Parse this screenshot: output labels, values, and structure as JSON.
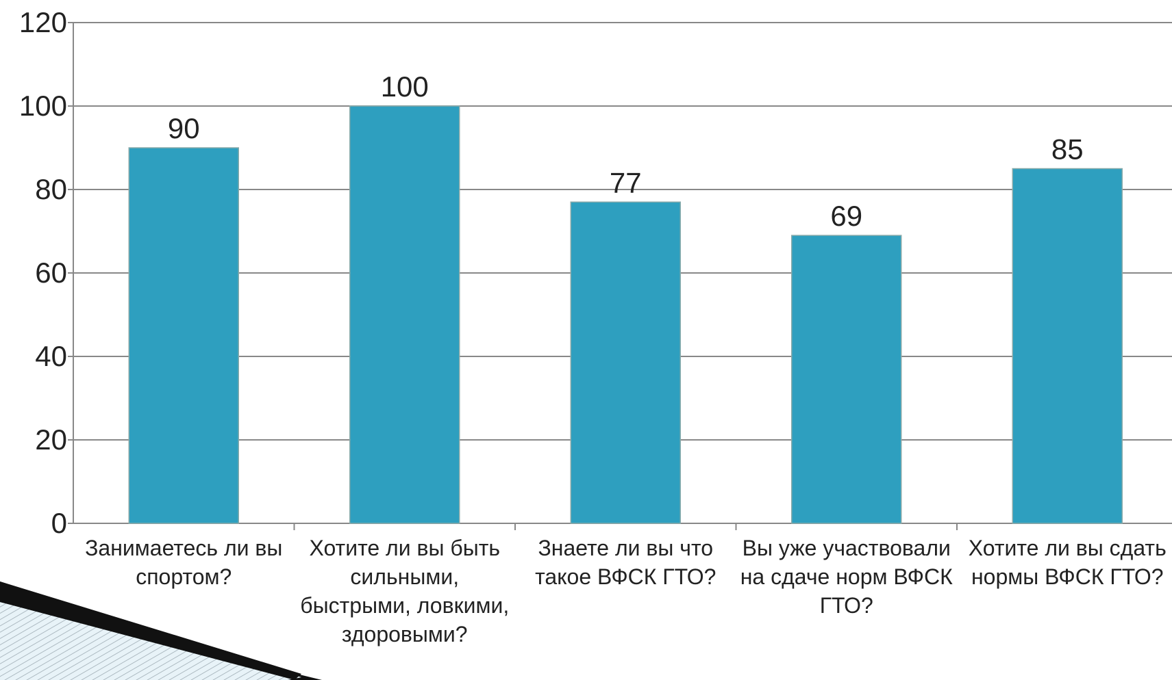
{
  "chart_data": {
    "type": "bar",
    "categories": [
      "Занимаетесь ли вы спортом?",
      "Хотите ли вы быть сильными, быстрыми, ловкими, здоровыми?",
      "Знаете ли вы что такое ВФСК ГТО?",
      "Вы уже участвовали на сдаче норм ВФСК ГТО?",
      "Хотите ли вы сдать нормы ВФСК ГТО?"
    ],
    "values": [
      90,
      100,
      77,
      69,
      85
    ],
    "color": "#2e9fbf",
    "ylim": [
      0,
      120
    ],
    "yticks": [
      0,
      20,
      40,
      60,
      80,
      100,
      120
    ],
    "grid": true
  }
}
